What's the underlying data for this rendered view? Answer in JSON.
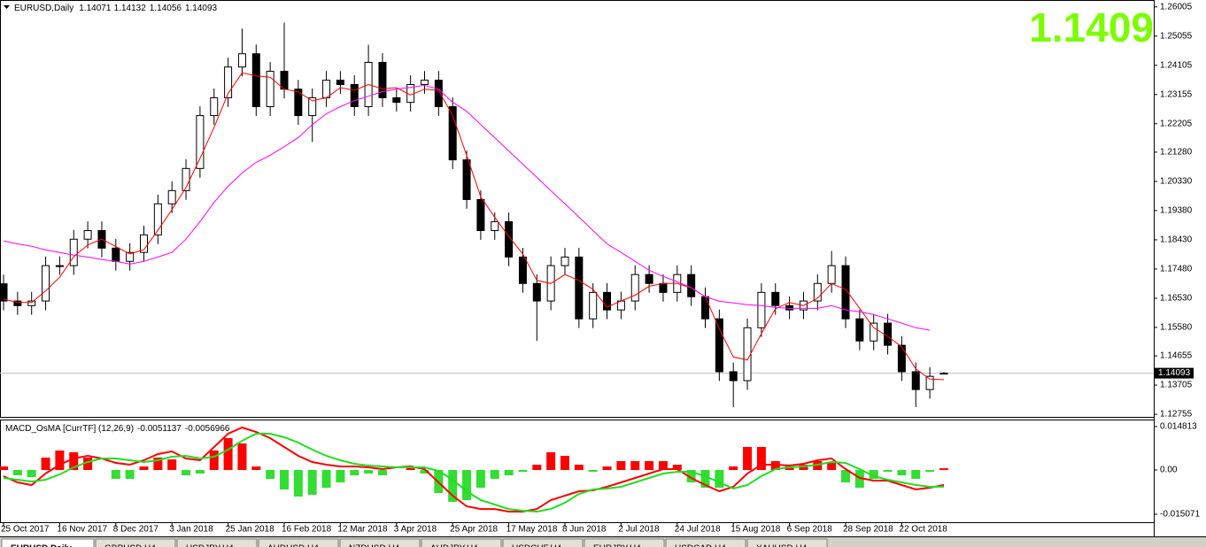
{
  "chart_data": [
    {
      "type": "candlestick",
      "title": "EURUSD,Daily",
      "price_display": "1.1409",
      "categories": [
        "25 Oct 2017",
        null,
        null,
        null,
        "16 Nov 2017",
        null,
        null,
        null,
        "8 Dec 2017",
        null,
        null,
        null,
        "3 Jan 2018",
        null,
        null,
        null,
        "25 Jan 2018",
        null,
        null,
        null,
        "16 Feb 2018",
        null,
        null,
        null,
        "12 Mar 2018",
        null,
        null,
        null,
        "3 Apr 2018",
        null,
        null,
        null,
        "25 Apr 2018",
        null,
        null,
        null,
        "17 May 2018",
        null,
        null,
        null,
        "8 Jun 2018",
        null,
        null,
        null,
        "2 Jul 2018",
        null,
        null,
        null,
        "24 Jul 2018",
        null,
        null,
        null,
        "15 Aug 2018",
        null,
        null,
        null,
        "6 Sep 2018",
        null,
        null,
        null,
        "28 Sep 2018",
        null,
        null,
        null,
        "22 Oct 2018",
        null,
        null,
        null
      ],
      "open": [
        1.17,
        1.1644,
        1.1629,
        1.1644,
        1.1759,
        1.1759,
        1.1845,
        1.1873,
        1.1816,
        1.1773,
        1.1802,
        1.1859,
        1.196,
        1.2003,
        1.2075,
        1.2247,
        1.2305,
        1.2405,
        1.2448,
        1.2276,
        1.2391,
        1.2333,
        1.2247,
        1.2305,
        1.2362,
        1.2348,
        1.2276,
        1.242,
        1.2305,
        1.229,
        1.2348,
        1.2362,
        1.2276,
        1.2103,
        1.1974,
        1.1873,
        1.1902,
        1.1787,
        1.1701,
        1.1644,
        1.1759,
        1.1787,
        1.1586,
        1.1672,
        1.1615,
        1.1644,
        1.173,
        1.1701,
        1.1672,
        1.173,
        1.1658,
        1.1586,
        1.1414,
        1.1385,
        1.1557,
        1.1672,
        1.1629,
        1.1615,
        1.1644,
        1.1701,
        1.1759,
        1.1586,
        1.1514,
        1.1572,
        1.15,
        1.1414,
        1.1356,
        1.14071
      ],
      "high": [
        1.173,
        1.1674,
        1.1674,
        1.1789,
        1.1789,
        1.1875,
        1.1903,
        1.1903,
        1.1846,
        1.1832,
        1.1889,
        1.199,
        1.2033,
        1.2105,
        1.2277,
        1.2335,
        1.2435,
        1.253,
        1.2478,
        1.2421,
        1.2549,
        1.2363,
        1.2335,
        1.2392,
        1.2392,
        1.2378,
        1.2477,
        1.245,
        1.2335,
        1.2378,
        1.2392,
        1.2392,
        1.2306,
        1.2133,
        1.2004,
        1.1932,
        1.1932,
        1.1817,
        1.1731,
        1.1789,
        1.1817,
        1.1817,
        1.1702,
        1.1702,
        1.1674,
        1.176,
        1.176,
        1.1731,
        1.176,
        1.176,
        1.1688,
        1.1616,
        1.1444,
        1.1587,
        1.1702,
        1.1702,
        1.1659,
        1.1674,
        1.1731,
        1.1807,
        1.1789,
        1.1616,
        1.1602,
        1.1602,
        1.153,
        1.1444,
        1.1429,
        1.14132
      ],
      "low": [
        1.1614,
        1.1599,
        1.1599,
        1.1614,
        1.1729,
        1.1729,
        1.1815,
        1.1786,
        1.1743,
        1.1743,
        1.1772,
        1.1829,
        1.193,
        1.1973,
        1.2045,
        1.2217,
        1.2275,
        1.2375,
        1.2246,
        1.2246,
        1.2303,
        1.2217,
        1.2161,
        1.2275,
        1.2318,
        1.2246,
        1.2246,
        1.2275,
        1.226,
        1.226,
        1.2318,
        1.2246,
        1.2073,
        1.1944,
        1.1843,
        1.1843,
        1.1757,
        1.1671,
        1.1514,
        1.1614,
        1.1729,
        1.1556,
        1.1556,
        1.1585,
        1.1585,
        1.1614,
        1.1671,
        1.1642,
        1.1642,
        1.1628,
        1.1556,
        1.1384,
        1.1299,
        1.1355,
        1.1527,
        1.1599,
        1.1585,
        1.1585,
        1.1614,
        1.1671,
        1.1556,
        1.1484,
        1.1484,
        1.147,
        1.1384,
        1.1299,
        1.1326,
        1.14056
      ],
      "close": [
        1.1644,
        1.1629,
        1.1644,
        1.1759,
        1.1759,
        1.1845,
        1.1873,
        1.1816,
        1.1773,
        1.1802,
        1.1859,
        1.196,
        1.2003,
        1.2075,
        1.2247,
        1.2305,
        1.2405,
        1.2448,
        1.2276,
        1.2391,
        1.2333,
        1.2247,
        1.2305,
        1.2362,
        1.2348,
        1.2276,
        1.242,
        1.2305,
        1.229,
        1.2348,
        1.2362,
        1.2276,
        1.2103,
        1.1974,
        1.1873,
        1.1902,
        1.1787,
        1.1701,
        1.1644,
        1.1759,
        1.1787,
        1.1586,
        1.1672,
        1.1615,
        1.1644,
        1.173,
        1.1701,
        1.1672,
        1.173,
        1.1658,
        1.1586,
        1.1414,
        1.1385,
        1.1557,
        1.1672,
        1.1629,
        1.1615,
        1.1644,
        1.1701,
        1.1759,
        1.1586,
        1.1514,
        1.1572,
        1.15,
        1.1414,
        1.1356,
        1.1399,
        1.14093
      ],
      "lines": [
        {
          "color": "#ff0000",
          "values": [
            1.165,
            1.164,
            1.1639,
            1.1677,
            1.1721,
            1.1788,
            1.1826,
            1.1845,
            1.1821,
            1.1797,
            1.1811,
            1.1874,
            1.1941,
            1.2013,
            1.2108,
            1.2209,
            1.2319,
            1.2386,
            1.2376,
            1.2372,
            1.2333,
            1.2324,
            1.2295,
            1.2305,
            1.2338,
            1.2329,
            1.2348,
            1.2334,
            1.2338,
            1.2314,
            1.2333,
            1.2329,
            1.2247,
            1.2118,
            1.1983,
            1.1916,
            1.1854,
            1.1797,
            1.1711,
            1.1701,
            1.173,
            1.1711,
            1.1682,
            1.1624,
            1.1644,
            1.1663,
            1.1692,
            1.1701,
            1.1701,
            1.1687,
            1.1658,
            1.1553,
            1.1462,
            1.1452,
            1.1538,
            1.1619,
            1.1639,
            1.1629,
            1.1653,
            1.1701,
            1.1682,
            1.162,
            1.1557,
            1.1529,
            1.1495,
            1.1423,
            1.139,
            1.1388
          ]
        },
        {
          "color": "#ff00ff",
          "values": [
            1.1839,
            1.183,
            1.1822,
            1.181,
            1.1802,
            1.1793,
            1.1787,
            1.1779,
            1.1773,
            1.1764,
            1.1773,
            1.1787,
            1.1802,
            1.1845,
            1.1902,
            1.1965,
            1.2017,
            1.206,
            1.2095,
            1.2118,
            1.2146,
            1.2175,
            1.2218,
            1.2253,
            1.2276,
            1.2296,
            1.231,
            1.2325,
            1.2333,
            1.2339,
            1.2345,
            1.2333,
            1.229,
            1.2261,
            1.2218,
            1.2175,
            1.2132,
            1.2089,
            1.2046,
            1.2003,
            1.196,
            1.1917,
            1.1873,
            1.183,
            1.1802,
            1.1773,
            1.1744,
            1.1724,
            1.1707,
            1.1687,
            1.1658,
            1.1643,
            1.1638,
            1.1632,
            1.1629,
            1.1623,
            1.162,
            1.162,
            1.162,
            1.1629,
            1.1615,
            1.1609,
            1.16,
            1.1586,
            1.1572,
            1.1557,
            1.1549,
            null
          ]
        }
      ],
      "ylim": [
        1.127,
        1.262
      ],
      "yticks": [
        1.26005,
        1.25055,
        1.24105,
        1.23155,
        1.22205,
        {
          "value": 1.2128,
          "label": "1.21280"
        },
        {
          "value": 1.2033,
          "label": "1.20330"
        },
        {
          "value": 1.1938,
          "label": "1.19380"
        },
        {
          "value": 1.1843,
          "label": "1.18430"
        },
        {
          "value": 1.1748,
          "label": "1.17480"
        },
        {
          "value": 1.1653,
          "label": "1.16530"
        },
        {
          "value": 1.1558,
          "label": "1.15580"
        },
        1.14655,
        1.13705,
        1.12755
      ],
      "tabs": [
        "EURUSD,Daily",
        "GBPUSD,H4",
        "USDJPY,H4",
        "AUDUSD,H4",
        "NZDUSD,H4",
        "AUDJPY,H4",
        "USDCHF,H4",
        "EURJPY,H4",
        "USDCAD,H4",
        "XAUUSD,H4"
      ]
    },
    {
      "type": "macd",
      "title": "MACD_OsMA [CurrTF] (12,26,9)",
      "histogram": {
        "up_color": "#ff0000",
        "down_color": "#33dd33",
        "values": [
          0.00121,
          -0.00181,
          -0.00242,
          0.00423,
          0.00664,
          0.00604,
          0.00423,
          0,
          -0.00302,
          -0.00302,
          0.00121,
          0.00423,
          0.00362,
          -0.00181,
          -0.00121,
          0.00664,
          0.01087,
          0.00906,
          0.00121,
          -0.00302,
          -0.00664,
          -0.00906,
          -0.00846,
          -0.00604,
          -0.00423,
          -0.00181,
          -0.00121,
          -0.00181,
          0,
          0.0006,
          -0.00121,
          -0.00785,
          -0.01087,
          -0.01027,
          -0.00604,
          -0.00302,
          -0.00181,
          -0.0006,
          0.00181,
          0.00604,
          0.00483,
          0.00181,
          -0.0006,
          0.00121,
          0.00302,
          0.00302,
          0.00302,
          0.00302,
          0.00181,
          -0.00423,
          -0.00604,
          -0.00604,
          0.00121,
          0.00785,
          0.00785,
          0.00302,
          0.00121,
          0.00181,
          0.00302,
          0.00242,
          -0.00423,
          -0.00604,
          -0.00302,
          -0.0006,
          -0.00181,
          -0.00302,
          -0.0006,
          0.00058
        ]
      },
      "lines": [
        {
          "color": "#ff0000",
          "values": [
            -0.00211,
            -0.00423,
            -0.00513,
            -0.00121,
            0.00181,
            0.00393,
            0.00483,
            0.00393,
            0.00242,
            0.00181,
            0.00332,
            0.00544,
            0.00634,
            0.00393,
            0.00332,
            0.00785,
            0.01238,
            0.0145,
            0.01299,
            0.01087,
            0.00785,
            0.00483,
            0.00272,
            0.00181,
            0.00121,
            0.00121,
            0.00091,
            0.0003,
            0.00091,
            0.00121,
            0.0003,
            -0.00423,
            -0.00876,
            -0.01238,
            -0.01329,
            -0.01329,
            -0.01419,
            -0.01419,
            -0.01329,
            -0.01027,
            -0.00876,
            -0.00725,
            -0.00695,
            -0.00574,
            -0.00423,
            -0.00272,
            -0.00121,
            0.0003,
            0.0003,
            -0.00272,
            -0.00513,
            -0.00725,
            -0.00574,
            -0.00121,
            0.00181,
            0.00181,
            0.00151,
            0.00211,
            0.00332,
            0.00393,
            0.0003,
            -0.00272,
            -0.00362,
            -0.00362,
            -0.00513,
            -0.00664,
            -0.00604,
            -0.0051137
          ]
        },
        {
          "color": "#22dd22",
          "values": [
            -0.00272,
            -0.00332,
            -0.00393,
            -0.00332,
            -0.00151,
            0.00091,
            0.00272,
            0.00393,
            0.00393,
            0.00332,
            0.00272,
            0.00332,
            0.00453,
            0.00483,
            0.00393,
            0.00453,
            0.00695,
            0.00997,
            0.01238,
            0.01238,
            0.01117,
            0.00936,
            0.00695,
            0.00483,
            0.00332,
            0.00211,
            0.00151,
            0.00121,
            0.00091,
            0.00091,
            0.00091,
            -0.0003,
            -0.00332,
            -0.00725,
            -0.01027,
            -0.01178,
            -0.01329,
            -0.01389,
            -0.01419,
            -0.01329,
            -0.01117,
            -0.00815,
            -0.00664,
            -0.00634,
            -0.00574,
            -0.00423,
            -0.00272,
            -0.00121,
            -0.0006,
            -0.0006,
            -0.00211,
            -0.00423,
            -0.00634,
            -0.00513,
            -0.00211,
            0.0003,
            0.00091,
            0.00121,
            0.00181,
            0.00272,
            0.00242,
            0.0003,
            -0.00211,
            -0.00332,
            -0.00423,
            -0.00513,
            -0.00574,
            -0.0056966
          ]
        }
      ],
      "ylim": [
        -0.0178,
        0.0169
      ],
      "yticks": [
        0.014813,
        {
          "value": 0,
          "label": "0.00"
        },
        -0.015071
      ]
    }
  ]
}
